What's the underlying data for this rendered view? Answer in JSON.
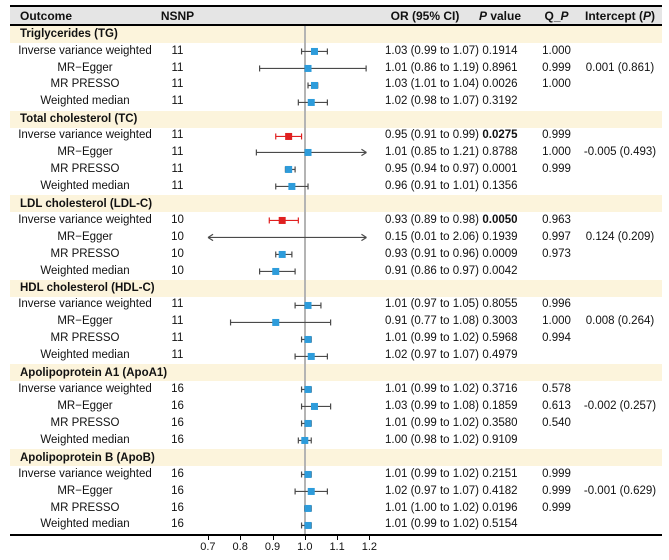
{
  "colors": {
    "marker_blue": "#2e9cdb",
    "marker_red": "#e02020",
    "ci_line": "#4a4a4a",
    "section_bg": "#fcf4dc",
    "header_bg": "#e5e5e5",
    "refline_gray": "#b4b4b4"
  },
  "header": {
    "columns": [
      {
        "key": "outcome",
        "label": [
          {
            "t": "Outcome"
          }
        ]
      },
      {
        "key": "nsnp",
        "label": [
          {
            "t": "NSNP"
          }
        ]
      },
      {
        "key": "plot",
        "label": []
      },
      {
        "key": "or",
        "label": [
          {
            "t": "OR (95% CI)"
          }
        ]
      },
      {
        "key": "p",
        "label": [
          {
            "t": "P",
            "i": true
          },
          {
            "t": " value"
          }
        ]
      },
      {
        "key": "qp",
        "label": [
          {
            "t": "Q_"
          },
          {
            "t": "P",
            "i": true
          }
        ]
      },
      {
        "key": "intercept",
        "label": [
          {
            "t": "Intercept ("
          },
          {
            "t": "P",
            "i": true
          },
          {
            "t": ")"
          }
        ]
      }
    ]
  },
  "chart_data": {
    "type": "forest",
    "title": "",
    "xlabel": "",
    "x_axis": {
      "ticks": [
        0.7,
        0.8,
        0.9,
        1.0,
        1.1,
        1.2
      ],
      "tick_labels": [
        "0.7",
        "0.8",
        "0.9",
        "1.0",
        "1.1",
        "1.2"
      ],
      "ref_value": 1.0,
      "clip_range": [
        0.702,
        1.191
      ]
    },
    "groups": [
      {
        "section": "Triglycerides (TG)",
        "rows": [
          {
            "method": "Inverse variance weighted",
            "nsnp": "11",
            "or": 1.03,
            "lo": 0.99,
            "hi": 1.07,
            "or_ci": "1.03 (0.99 to 1.07)",
            "p": "0.1914",
            "p_bold": false,
            "q_p": "1.000",
            "intercept": "",
            "color": "blue"
          },
          {
            "method": "MR−Egger",
            "nsnp": "11",
            "or": 1.01,
            "lo": 0.86,
            "hi": 1.19,
            "or_ci": "1.01 (0.86 to 1.19)",
            "p": "0.8961",
            "p_bold": false,
            "q_p": "0.999",
            "intercept": "0.001 (0.861)",
            "color": "blue"
          },
          {
            "method": "MR PRESSO",
            "nsnp": "11",
            "or": 1.03,
            "lo": 1.01,
            "hi": 1.04,
            "or_ci": "1.03 (1.01 to 1.04)",
            "p": "0.0026",
            "p_bold": false,
            "q_p": "1.000",
            "intercept": "",
            "color": "blue"
          },
          {
            "method": "Weighted median",
            "nsnp": "11",
            "or": 1.02,
            "lo": 0.98,
            "hi": 1.07,
            "or_ci": "1.02 (0.98 to 1.07)",
            "p": "0.3192",
            "p_bold": false,
            "q_p": "",
            "intercept": "",
            "color": "blue"
          }
        ]
      },
      {
        "section": "Total cholesterol (TC)",
        "rows": [
          {
            "method": "Inverse variance weighted",
            "nsnp": "11",
            "or": 0.95,
            "lo": 0.91,
            "hi": 0.99,
            "or_ci": "0.95 (0.91 to 0.99)",
            "p": "0.0275",
            "p_bold": true,
            "q_p": "0.999",
            "intercept": "",
            "color": "red"
          },
          {
            "method": "MR−Egger",
            "nsnp": "11",
            "or": 1.01,
            "lo": 0.85,
            "hi": 1.21,
            "or_ci": "1.01 (0.85 to 1.21)",
            "p": "0.8788",
            "p_bold": false,
            "q_p": "1.000",
            "intercept": "-0.005 (0.493)",
            "color": "blue"
          },
          {
            "method": "MR PRESSO",
            "nsnp": "11",
            "or": 0.95,
            "lo": 0.94,
            "hi": 0.97,
            "or_ci": "0.95 (0.94 to 0.97)",
            "p": "0.0001",
            "p_bold": false,
            "q_p": "0.999",
            "intercept": "",
            "color": "blue"
          },
          {
            "method": "Weighted median",
            "nsnp": "11",
            "or": 0.96,
            "lo": 0.91,
            "hi": 1.01,
            "or_ci": "0.96 (0.91 to 1.01)",
            "p": "0.1356",
            "p_bold": false,
            "q_p": "",
            "intercept": "",
            "color": "blue"
          }
        ]
      },
      {
        "section": "LDL cholesterol (LDL-C)",
        "rows": [
          {
            "method": "Inverse variance weighted",
            "nsnp": "10",
            "or": 0.93,
            "lo": 0.89,
            "hi": 0.98,
            "or_ci": "0.93 (0.89 to 0.98)",
            "p": "0.0050",
            "p_bold": true,
            "q_p": "0.963",
            "intercept": "",
            "color": "red"
          },
          {
            "method": "MR−Egger",
            "nsnp": "10",
            "or": 0.15,
            "lo": 0.01,
            "hi": 2.06,
            "or_ci": "0.15 (0.01 to 2.06)",
            "p": "0.1939",
            "p_bold": false,
            "q_p": "0.997",
            "intercept": "0.124 (0.209)",
            "color": "blue"
          },
          {
            "method": "MR PRESSO",
            "nsnp": "10",
            "or": 0.93,
            "lo": 0.91,
            "hi": 0.96,
            "or_ci": "0.93 (0.91 to 0.96)",
            "p": "0.0009",
            "p_bold": false,
            "q_p": "0.973",
            "intercept": "",
            "color": "blue"
          },
          {
            "method": "Weighted median",
            "nsnp": "10",
            "or": 0.91,
            "lo": 0.86,
            "hi": 0.97,
            "or_ci": "0.91 (0.86 to 0.97)",
            "p": "0.0042",
            "p_bold": false,
            "q_p": "",
            "intercept": "",
            "color": "blue"
          }
        ]
      },
      {
        "section": "HDL cholesterol (HDL-C)",
        "rows": [
          {
            "method": "Inverse variance weighted",
            "nsnp": "11",
            "or": 1.01,
            "lo": 0.97,
            "hi": 1.05,
            "or_ci": "1.01 (0.97 to 1.05)",
            "p": "0.8055",
            "p_bold": false,
            "q_p": "0.996",
            "intercept": "",
            "color": "blue"
          },
          {
            "method": "MR−Egger",
            "nsnp": "11",
            "or": 0.91,
            "lo": 0.77,
            "hi": 1.08,
            "or_ci": "0.91 (0.77 to 1.08)",
            "p": "0.3003",
            "p_bold": false,
            "q_p": "1.000",
            "intercept": "0.008 (0.264)",
            "color": "blue"
          },
          {
            "method": "MR PRESSO",
            "nsnp": "11",
            "or": 1.01,
            "lo": 0.99,
            "hi": 1.02,
            "or_ci": "1.01 (0.99 to 1.02)",
            "p": "0.5968",
            "p_bold": false,
            "q_p": "0.994",
            "intercept": "",
            "color": "blue"
          },
          {
            "method": "Weighted median",
            "nsnp": "11",
            "or": 1.02,
            "lo": 0.97,
            "hi": 1.07,
            "or_ci": "1.02 (0.97 to 1.07)",
            "p": "0.4979",
            "p_bold": false,
            "q_p": "",
            "intercept": "",
            "color": "blue"
          }
        ]
      },
      {
        "section": "Apolipoprotein A1 (ApoA1)",
        "rows": [
          {
            "method": "Inverse variance weighted",
            "nsnp": "16",
            "or": 1.01,
            "lo": 0.99,
            "hi": 1.02,
            "or_ci": "1.01 (0.99 to 1.02)",
            "p": "0.3716",
            "p_bold": false,
            "q_p": "0.578",
            "intercept": "",
            "color": "blue"
          },
          {
            "method": "MR−Egger",
            "nsnp": "16",
            "or": 1.03,
            "lo": 0.99,
            "hi": 1.08,
            "or_ci": "1.03 (0.99 to 1.08)",
            "p": "0.1859",
            "p_bold": false,
            "q_p": "0.613",
            "intercept": "-0.002 (0.257)",
            "color": "blue"
          },
          {
            "method": "MR PRESSO",
            "nsnp": "16",
            "or": 1.01,
            "lo": 0.99,
            "hi": 1.02,
            "or_ci": "1.01 (0.99 to 1.02)",
            "p": "0.3580",
            "p_bold": false,
            "q_p": "0.540",
            "intercept": "",
            "color": "blue"
          },
          {
            "method": "Weighted median",
            "nsnp": "16",
            "or": 1.0,
            "lo": 0.98,
            "hi": 1.02,
            "or_ci": "1.00 (0.98 to 1.02)",
            "p": "0.9109",
            "p_bold": false,
            "q_p": "",
            "intercept": "",
            "color": "blue"
          }
        ]
      },
      {
        "section": "Apolipoprotein B (ApoB)",
        "rows": [
          {
            "method": "Inverse variance weighted",
            "nsnp": "16",
            "or": 1.01,
            "lo": 0.99,
            "hi": 1.02,
            "or_ci": "1.01 (0.99 to 1.02)",
            "p": "0.2151",
            "p_bold": false,
            "q_p": "0.999",
            "intercept": "",
            "color": "blue"
          },
          {
            "method": "MR−Egger",
            "nsnp": "16",
            "or": 1.02,
            "lo": 0.97,
            "hi": 1.07,
            "or_ci": "1.02 (0.97 to 1.07)",
            "p": "0.4182",
            "p_bold": false,
            "q_p": "0.999",
            "intercept": "-0.001 (0.629)",
            "color": "blue"
          },
          {
            "method": "MR PRESSO",
            "nsnp": "16",
            "or": 1.01,
            "lo": 1.0,
            "hi": 1.02,
            "or_ci": "1.01 (1.00 to 1.02)",
            "p": "0.0196",
            "p_bold": false,
            "q_p": "0.999",
            "intercept": "",
            "color": "blue"
          },
          {
            "method": "Weighted median",
            "nsnp": "16",
            "or": 1.01,
            "lo": 0.99,
            "hi": 1.02,
            "or_ci": "1.01 (0.99 to 1.02)",
            "p": "0.5154",
            "p_bold": false,
            "q_p": "",
            "intercept": "",
            "color": "blue"
          }
        ]
      }
    ]
  }
}
